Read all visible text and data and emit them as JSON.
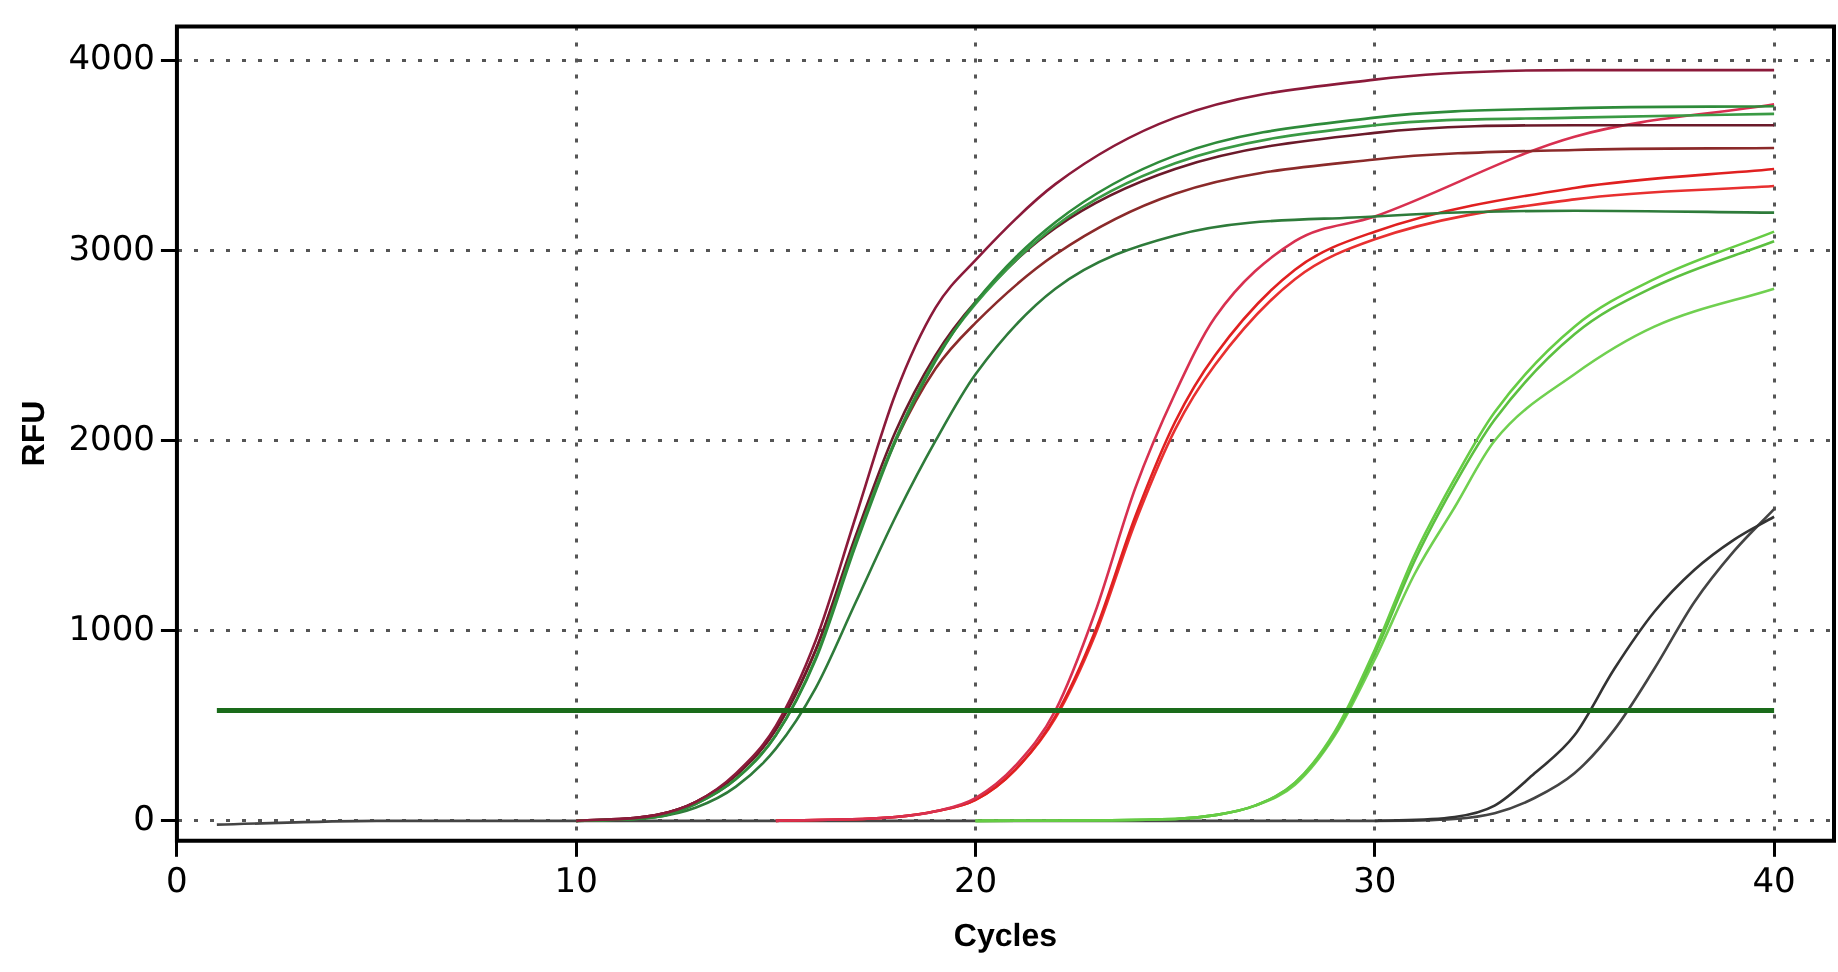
{
  "chart_data": {
    "type": "line",
    "xlabel": "Cycles",
    "ylabel": "RFU",
    "xlim": [
      0,
      41.5
    ],
    "ylim": [
      -105,
      4180
    ],
    "xticks": [
      0,
      10,
      20,
      30,
      40
    ],
    "yticks": [
      0,
      1000,
      2000,
      3000,
      4000
    ],
    "grid": true,
    "legend": false,
    "marker": "none",
    "line_style": "solid",
    "ref_lines": [
      {
        "axis": "y",
        "value": 580,
        "color": "#1a6b1a"
      }
    ],
    "series": [
      {
        "color": "#8b1a3a",
        "x": [
          10,
          12,
          13,
          14,
          15,
          16,
          17,
          18,
          19,
          20,
          22,
          25,
          30,
          35,
          40
        ],
        "values": [
          0,
          30,
          100,
          250,
          500,
          950,
          1600,
          2250,
          2700,
          2950,
          3350,
          3700,
          3900,
          3950,
          3950
        ]
      },
      {
        "color": "#2e8b3a",
        "x": [
          10,
          12,
          13,
          14,
          15,
          16,
          17,
          18,
          19,
          20,
          22,
          25,
          30,
          35,
          40
        ],
        "values": [
          0,
          20,
          90,
          220,
          450,
          850,
          1450,
          2000,
          2420,
          2730,
          3150,
          3500,
          3700,
          3750,
          3760
        ]
      },
      {
        "color": "#3a9a44",
        "x": [
          10,
          12,
          13,
          14,
          15,
          16,
          17,
          18,
          19,
          20,
          22,
          25,
          30,
          35,
          40
        ],
        "values": [
          0,
          20,
          90,
          220,
          450,
          860,
          1470,
          2010,
          2430,
          2720,
          3130,
          3460,
          3660,
          3700,
          3720
        ]
      },
      {
        "color": "#6b1a2a",
        "x": [
          10,
          12,
          13,
          14,
          15,
          16,
          17,
          18,
          19,
          20,
          22,
          25,
          30,
          35,
          40
        ],
        "values": [
          0,
          30,
          100,
          240,
          480,
          900,
          1500,
          2050,
          2450,
          2730,
          3120,
          3430,
          3620,
          3660,
          3660
        ]
      },
      {
        "color": "#8b2a2a",
        "x": [
          10,
          12,
          13,
          14,
          15,
          16,
          17,
          18,
          19,
          20,
          22,
          25,
          30,
          35,
          40
        ],
        "values": [
          0,
          30,
          100,
          240,
          480,
          900,
          1480,
          2000,
          2380,
          2620,
          2980,
          3300,
          3480,
          3530,
          3540
        ]
      },
      {
        "color": "#2e7b3a",
        "x": [
          10,
          12,
          13,
          14,
          15,
          16,
          17,
          18,
          19,
          20,
          22,
          25,
          30,
          35,
          40
        ],
        "values": [
          0,
          20,
          70,
          180,
          380,
          700,
          1150,
          1600,
          2000,
          2350,
          2800,
          3080,
          3180,
          3210,
          3200
        ]
      },
      {
        "color": "#d83050",
        "x": [
          15,
          18,
          19,
          20,
          21,
          22,
          23,
          24,
          25,
          26,
          28,
          30,
          35,
          40
        ],
        "values": [
          0,
          20,
          50,
          120,
          290,
          580,
          1100,
          1750,
          2250,
          2650,
          3050,
          3180,
          3600,
          3770
        ]
      },
      {
        "color": "#e02020",
        "x": [
          15,
          18,
          19,
          20,
          21,
          22,
          23,
          24,
          25,
          26,
          28,
          30,
          35,
          40
        ],
        "values": [
          0,
          20,
          50,
          110,
          270,
          550,
          1000,
          1600,
          2100,
          2450,
          2900,
          3100,
          3330,
          3430
        ]
      },
      {
        "color": "#e83030",
        "x": [
          15,
          18,
          19,
          20,
          21,
          22,
          23,
          24,
          25,
          26,
          28,
          30,
          35,
          40
        ],
        "values": [
          0,
          20,
          50,
          110,
          270,
          540,
          980,
          1570,
          2060,
          2400,
          2850,
          3060,
          3270,
          3340
        ]
      },
      {
        "color": "#66cc44",
        "x": [
          20,
          25,
          26,
          27,
          28,
          29,
          30,
          31,
          32,
          33,
          35,
          37,
          40
        ],
        "values": [
          0,
          10,
          30,
          80,
          200,
          470,
          900,
          1400,
          1800,
          2150,
          2600,
          2850,
          3100
        ]
      },
      {
        "color": "#5cc040",
        "x": [
          20,
          25,
          26,
          27,
          28,
          29,
          30,
          31,
          32,
          33,
          35,
          37,
          40
        ],
        "values": [
          0,
          10,
          30,
          80,
          200,
          460,
          880,
          1370,
          1770,
          2110,
          2560,
          2810,
          3050
        ]
      },
      {
        "color": "#70d050",
        "x": [
          20,
          25,
          26,
          27,
          28,
          29,
          30,
          31,
          32,
          33,
          35,
          37,
          40
        ],
        "values": [
          0,
          10,
          30,
          80,
          190,
          450,
          850,
          1300,
          1650,
          2000,
          2350,
          2600,
          2800
        ]
      },
      {
        "color": "#333333",
        "x": [
          30,
          32,
          33,
          34,
          35,
          36,
          37,
          38,
          39,
          40
        ],
        "values": [
          0,
          20,
          80,
          250,
          450,
          800,
          1100,
          1320,
          1480,
          1600
        ]
      },
      {
        "color": "#444444",
        "x": [
          1,
          5,
          10,
          20,
          30,
          32,
          33,
          34,
          35,
          36,
          37,
          38,
          39,
          40
        ],
        "values": [
          -20,
          0,
          0,
          0,
          0,
          10,
          40,
          120,
          250,
          480,
          800,
          1150,
          1420,
          1640
        ]
      }
    ]
  }
}
